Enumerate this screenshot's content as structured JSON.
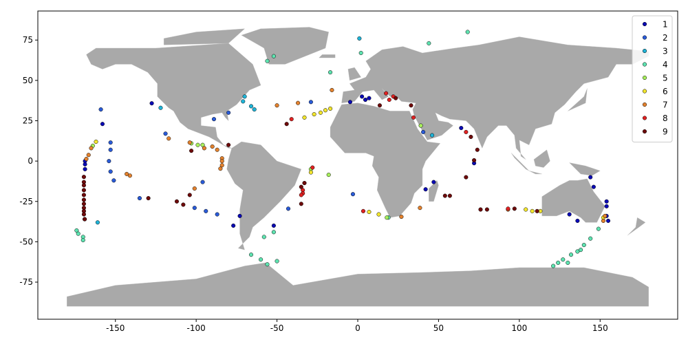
{
  "chart_data": {
    "type": "scatter",
    "xlim": [
      -198,
      198
    ],
    "ylim": [
      -98,
      93
    ],
    "xticks": [
      -150,
      -100,
      -50,
      0,
      50,
      100,
      150
    ],
    "yticks": [
      -75,
      -50,
      -25,
      0,
      25,
      50,
      75
    ],
    "legend": "upper right",
    "series": [
      {
        "name": "1",
        "color": "#0a0ab4",
        "x": [
          -127.5,
          -158,
          -168.8,
          -168.8,
          -168.8,
          -4.7,
          2.6,
          4.7,
          7,
          -52,
          -73,
          -77,
          47,
          42,
          64,
          72,
          144,
          146,
          154,
          154,
          154,
          155,
          131,
          136
        ],
        "y": [
          35.8,
          23,
          0,
          -2,
          -5,
          36.6,
          40,
          38,
          39,
          -40,
          -34,
          -40,
          -13,
          -17.5,
          20.5,
          -1.3,
          -10,
          -16,
          -25,
          -28,
          -34,
          -37,
          -33,
          -37
        ]
      },
      {
        "name": "2",
        "color": "#2a5bd8",
        "x": [
          -159,
          -153,
          -153,
          -154,
          -153,
          -151,
          -119,
          -89,
          -80,
          -135,
          -96,
          -101,
          -94,
          -87,
          -29,
          -3,
          -43,
          40.5
        ],
        "y": [
          32,
          11.5,
          7,
          0,
          -6.5,
          -12,
          17,
          26,
          30,
          -23,
          -13,
          -29,
          -31,
          -33,
          36.6,
          -20.5,
          -29.5,
          18
        ]
      },
      {
        "name": "3",
        "color": "#1fb4d8",
        "x": [
          -122,
          -71,
          -66,
          -64,
          -70,
          46,
          -161,
          1
        ],
        "y": [
          33,
          37,
          34,
          32,
          40,
          16,
          -38,
          76
        ]
      },
      {
        "name": "4",
        "color": "#5ee3b0",
        "x": [
          2,
          68,
          44,
          -56,
          -52,
          -17,
          -174,
          -173,
          -170,
          -170,
          -58,
          -52,
          -66,
          -60,
          -56,
          -50,
          19,
          144,
          149,
          121,
          124,
          127,
          130,
          132,
          136,
          138,
          140
        ],
        "y": [
          67,
          80,
          73,
          62,
          65,
          55,
          -43,
          -45,
          -47,
          -49,
          -47,
          -44,
          -58,
          -61,
          -64,
          -62,
          -35,
          -48,
          -42,
          -65,
          -63,
          -61,
          -63,
          -58,
          -56,
          -55,
          -52
        ]
      },
      {
        "name": "5",
        "color": "#a8f05c",
        "x": [
          -164,
          -103,
          -99,
          -96,
          -29,
          -18,
          39,
          18
        ],
        "y": [
          9.5,
          11,
          10,
          10,
          -5,
          -8.5,
          22,
          -35
        ]
      },
      {
        "name": "6",
        "color": "#f2e52e",
        "x": [
          -162,
          -33,
          -27,
          -23,
          -20,
          -17,
          -29,
          7,
          13,
          104,
          108,
          113,
          152
        ],
        "y": [
          12,
          27,
          29,
          30,
          31.5,
          32.5,
          -7,
          -31.5,
          -33,
          -30,
          -31,
          -31,
          -35
        ]
      },
      {
        "name": "7",
        "color": "#e4822e",
        "x": [
          -166.6,
          -168,
          -165,
          -117,
          -143,
          -141,
          -101,
          -104,
          -95,
          -90,
          -87,
          -84,
          -84,
          -84,
          -85,
          -50,
          -37,
          -16,
          38.5,
          27,
          152,
          153,
          93
        ],
        "y": [
          3.8,
          1.3,
          8,
          14,
          -8,
          -9,
          -17,
          11.5,
          8,
          9,
          7,
          1.7,
          0,
          -2.6,
          -4.7,
          34.5,
          36,
          44,
          -29,
          -34.5,
          -37,
          -34,
          -30
        ]
      },
      {
        "name": "8",
        "color": "#e02222",
        "x": [
          -169,
          -28,
          -34,
          -34,
          -35,
          -41,
          17.5,
          19.5,
          22,
          34.5,
          67,
          93,
          3.4
        ],
        "y": [
          -36,
          -4,
          -18,
          -20,
          -21,
          26,
          42,
          38,
          40,
          27,
          18,
          -29.5,
          -31
        ]
      },
      {
        "name": "9",
        "color": "#6e0a0a",
        "x": [
          -169.5,
          -169.5,
          -169.5,
          -169.5,
          -169.5,
          -169.5,
          -169.5,
          -169.5,
          -169.5,
          -169.5,
          -169,
          -129.6,
          -112,
          -108,
          -104,
          -103,
          -80,
          -44,
          -35,
          -33,
          -35,
          13.6,
          33,
          67,
          70,
          74,
          72,
          54,
          57,
          76,
          80,
          97,
          111,
          23.5
        ],
        "y": [
          -9.8,
          -13,
          -15,
          -18,
          -21,
          -24,
          -26.5,
          -29,
          -31,
          -33,
          -36,
          -23,
          -25,
          -27,
          -21,
          6.4,
          10,
          23,
          -26.5,
          -13.6,
          -16,
          34.5,
          34.5,
          -10,
          15,
          7,
          0.5,
          -21.5,
          -21.5,
          -30,
          -30,
          -29.5,
          -31,
          39
        ]
      }
    ]
  }
}
